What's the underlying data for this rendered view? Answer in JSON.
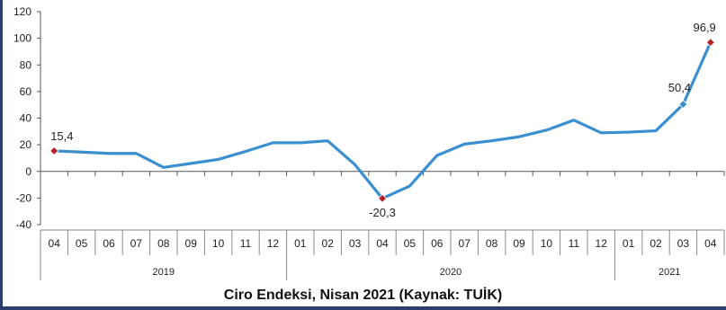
{
  "colors": {
    "line": "#3a8fd0",
    "highlight": "#b3232a",
    "marker_blue": "#3a8fd0",
    "frame": "#2b3f6b"
  },
  "chart_data": {
    "type": "line",
    "title": "Ciro Endeksi, Nisan 2021 (Kaynak: TUİK)",
    "ylim": [
      -40,
      120
    ],
    "yticks": [
      "120",
      "100",
      "80",
      "60",
      "40",
      "20",
      "0",
      "-20",
      "-40"
    ],
    "categories": [
      "04",
      "05",
      "06",
      "07",
      "08",
      "09",
      "10",
      "11",
      "12",
      "01",
      "02",
      "03",
      "04",
      "05",
      "06",
      "07",
      "08",
      "09",
      "10",
      "11",
      "12",
      "01",
      "02",
      "03",
      "04"
    ],
    "years": [
      {
        "label": "2019",
        "start": 0,
        "end": 8
      },
      {
        "label": "2020",
        "start": 9,
        "end": 20
      },
      {
        "label": "2021",
        "start": 21,
        "end": 24
      }
    ],
    "values": [
      15.4,
      14.5,
      13.5,
      13.5,
      3,
      6,
      9,
      15,
      21.5,
      21.5,
      23,
      5,
      -20.3,
      -11,
      12,
      20.5,
      23,
      26,
      31,
      38.5,
      29,
      29.5,
      30.5,
      50.4,
      96.9
    ],
    "annotations": [
      {
        "index": 0,
        "label": "15,4",
        "marker": "highlight"
      },
      {
        "index": 12,
        "label": "-20,3",
        "marker": "highlight"
      },
      {
        "index": 23,
        "label": "50,4",
        "marker": "blue"
      },
      {
        "index": 24,
        "label": "96,9",
        "marker": "highlight"
      }
    ]
  }
}
